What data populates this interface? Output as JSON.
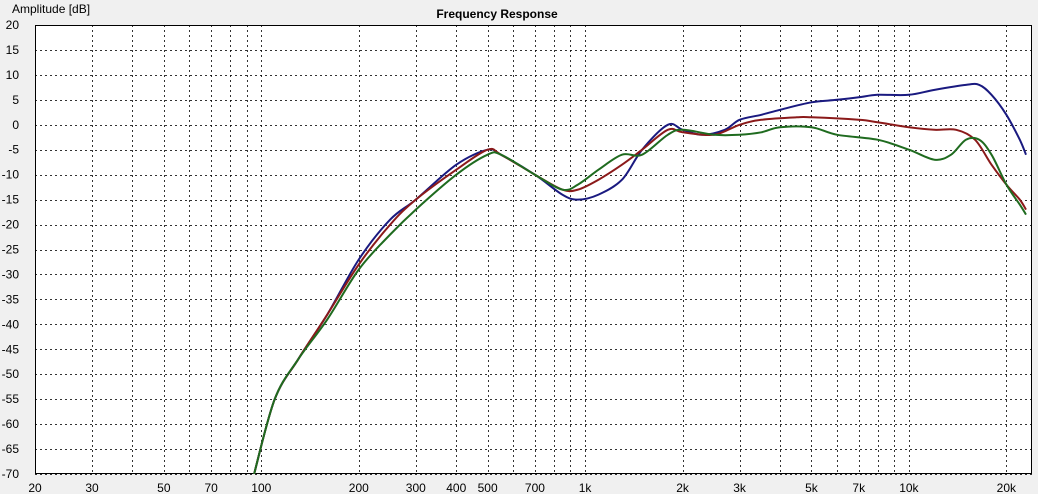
{
  "chart_data": {
    "type": "line",
    "title": "Frequency Response",
    "ylabel": "Amplitude [dB]",
    "xlabel": "",
    "x_scale": "log",
    "xlim": [
      20,
      24000
    ],
    "ylim": [
      -70,
      20
    ],
    "y_ticks": [
      20,
      15,
      10,
      5,
      0,
      -5,
      -10,
      -15,
      -20,
      -25,
      -30,
      -35,
      -40,
      -45,
      -50,
      -55,
      -60,
      -65,
      -70
    ],
    "x_tick_labels": [
      {
        "v": 20,
        "t": "20"
      },
      {
        "v": 30,
        "t": "30"
      },
      {
        "v": 50,
        "t": "50"
      },
      {
        "v": 70,
        "t": "70"
      },
      {
        "v": 100,
        "t": "100"
      },
      {
        "v": 200,
        "t": "200"
      },
      {
        "v": 300,
        "t": "300"
      },
      {
        "v": 400,
        "t": "400"
      },
      {
        "v": 500,
        "t": "500"
      },
      {
        "v": 700,
        "t": "700"
      },
      {
        "v": 1000,
        "t": "1k"
      },
      {
        "v": 2000,
        "t": "2k"
      },
      {
        "v": 3000,
        "t": "3k"
      },
      {
        "v": 5000,
        "t": "5k"
      },
      {
        "v": 7000,
        "t": "7k"
      },
      {
        "v": 10000,
        "t": "10k"
      },
      {
        "v": 20000,
        "t": "20k"
      }
    ],
    "grid": true,
    "legend": "none",
    "series": [
      {
        "color": "#1a1a80",
        "points": [
          [
            95,
            -70
          ],
          [
            110,
            -55
          ],
          [
            130,
            -47
          ],
          [
            160,
            -38
          ],
          [
            200,
            -27
          ],
          [
            250,
            -19
          ],
          [
            300,
            -15
          ],
          [
            400,
            -8
          ],
          [
            500,
            -5
          ],
          [
            550,
            -6
          ],
          [
            700,
            -10
          ],
          [
            850,
            -14
          ],
          [
            950,
            -15
          ],
          [
            1100,
            -14
          ],
          [
            1300,
            -11
          ],
          [
            1500,
            -5
          ],
          [
            1800,
            0
          ],
          [
            2000,
            -1
          ],
          [
            2300,
            -2
          ],
          [
            2700,
            -1
          ],
          [
            3000,
            1
          ],
          [
            3500,
            2
          ],
          [
            4000,
            3
          ],
          [
            5000,
            4.5
          ],
          [
            6000,
            5
          ],
          [
            7000,
            5.5
          ],
          [
            8000,
            6
          ],
          [
            10000,
            6
          ],
          [
            12000,
            7
          ],
          [
            15000,
            8
          ],
          [
            16500,
            8
          ],
          [
            18000,
            6
          ],
          [
            20000,
            2
          ],
          [
            22000,
            -3
          ],
          [
            23000,
            -6
          ]
        ]
      },
      {
        "color": "#8b1a1a",
        "points": [
          [
            95,
            -70
          ],
          [
            110,
            -55
          ],
          [
            130,
            -47
          ],
          [
            160,
            -38
          ],
          [
            200,
            -28
          ],
          [
            250,
            -20
          ],
          [
            300,
            -15
          ],
          [
            400,
            -9
          ],
          [
            500,
            -5
          ],
          [
            550,
            -6
          ],
          [
            700,
            -10
          ],
          [
            850,
            -13
          ],
          [
            950,
            -13
          ],
          [
            1100,
            -11
          ],
          [
            1300,
            -8
          ],
          [
            1500,
            -5
          ],
          [
            1800,
            -1
          ],
          [
            2000,
            -1.5
          ],
          [
            2500,
            -2
          ],
          [
            3000,
            0
          ],
          [
            3500,
            1
          ],
          [
            4500,
            1.5
          ],
          [
            5000,
            1.5
          ],
          [
            7000,
            1
          ],
          [
            8000,
            0.5
          ],
          [
            10000,
            -0.5
          ],
          [
            12000,
            -1
          ],
          [
            14000,
            -1
          ],
          [
            16000,
            -3
          ],
          [
            18000,
            -8
          ],
          [
            20000,
            -12
          ],
          [
            22000,
            -15
          ],
          [
            23000,
            -17
          ]
        ]
      },
      {
        "color": "#1f6b1f",
        "points": [
          [
            95,
            -70
          ],
          [
            110,
            -55
          ],
          [
            130,
            -47
          ],
          [
            160,
            -39
          ],
          [
            200,
            -29
          ],
          [
            250,
            -22
          ],
          [
            300,
            -17
          ],
          [
            400,
            -10
          ],
          [
            500,
            -6
          ],
          [
            550,
            -6
          ],
          [
            700,
            -10
          ],
          [
            850,
            -13
          ],
          [
            950,
            -12
          ],
          [
            1100,
            -9
          ],
          [
            1300,
            -6
          ],
          [
            1500,
            -6
          ],
          [
            1800,
            -2
          ],
          [
            2000,
            -1
          ],
          [
            2500,
            -2
          ],
          [
            3000,
            -2
          ],
          [
            3500,
            -1.5
          ],
          [
            4000,
            -0.5
          ],
          [
            5000,
            -0.5
          ],
          [
            6000,
            -2
          ],
          [
            8000,
            -3
          ],
          [
            10000,
            -5
          ],
          [
            12000,
            -7
          ],
          [
            13500,
            -6
          ],
          [
            15000,
            -3
          ],
          [
            16500,
            -3
          ],
          [
            18000,
            -6
          ],
          [
            20000,
            -12
          ],
          [
            22000,
            -16
          ],
          [
            23000,
            -18
          ]
        ]
      }
    ]
  }
}
